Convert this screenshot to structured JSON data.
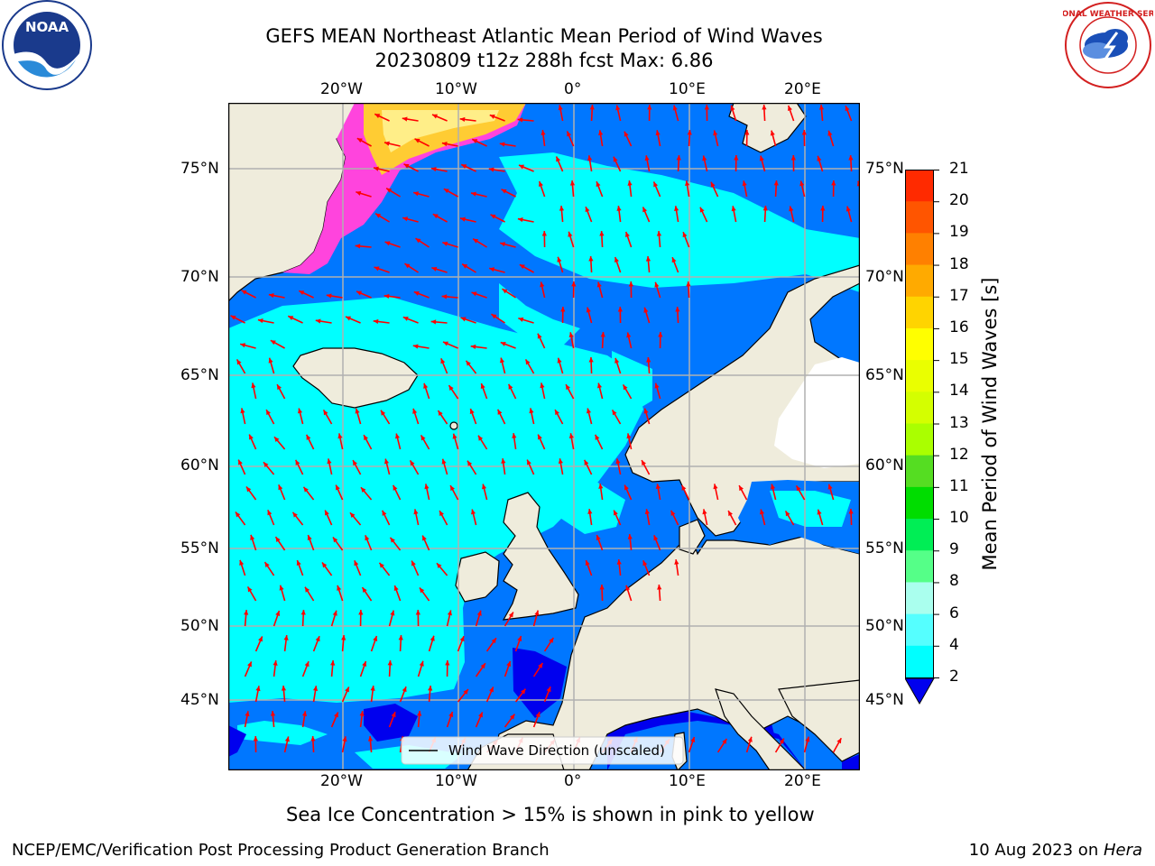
{
  "title": {
    "line1": "GEFS MEAN Northeast Atlantic Mean Period of Wind Waves",
    "line2": "20230809 t12z 288h fcst   Max: 6.86"
  },
  "logos": {
    "noaa_text": "NOAA",
    "noaa_ring_text": "NATIONAL OCEANIC AND ATMOSPHERIC ADMINISTRATION · U.S. DEPARTMENT OF COMMERCE",
    "nws_ring_text": "NATIONAL WEATHER SERVICE"
  },
  "map": {
    "lon_labels": [
      "20°W",
      "10°W",
      "0°",
      "10°E",
      "20°E"
    ],
    "lat_labels": [
      "75°N",
      "70°N",
      "65°N",
      "60°N",
      "55°N",
      "50°N",
      "45°N"
    ],
    "legend_label": "Wind Wave Direction (unscaled)",
    "colors": {
      "land": "#efecdc",
      "ice_lake": "#ffffff",
      "wave_2_4": "#0077ff",
      "wave_4_6": "#00ffff",
      "wave_lt2": "#0000ee",
      "ice_pink": "#ff44dd",
      "ice_yellow": "#ffcc33",
      "arrow": "#ff0000"
    }
  },
  "colorbar": {
    "label": "Mean Period of Wind Waves [s]",
    "ticks": [
      "21",
      "20",
      "19",
      "18",
      "17",
      "16",
      "15",
      "14",
      "13",
      "12",
      "11",
      "10",
      "9",
      "8",
      "6",
      "4",
      "2"
    ],
    "band_colors": [
      "#ff0000",
      "#ff2a00",
      "#ff5500",
      "#ff8000",
      "#ffaa00",
      "#ffd400",
      "#ffff00",
      "#eaff00",
      "#d4ff00",
      "#aaff00",
      "#55dd22",
      "#00dd00",
      "#00ee55",
      "#55ff88",
      "#aaffee",
      "#55ffff",
      "#00ffff",
      "#0077ff"
    ],
    "under_color": "#0000ee"
  },
  "caption": "Sea Ice Concentration > 15% is shown in pink to yellow",
  "footer": {
    "left": "NCEP/EMC/Verification Post Processing Product Generation Branch",
    "right_date": "10 Aug 2023 on ",
    "right_host": "Hera"
  }
}
